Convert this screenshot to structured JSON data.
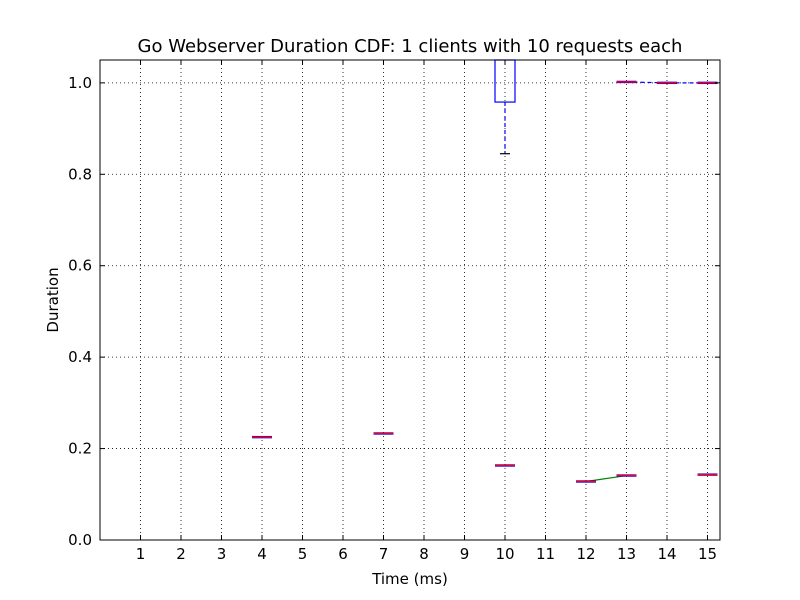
{
  "chart_data": {
    "type": "box",
    "title": "Go Webserver Duration CDF: 1 clients with 10 requests each",
    "xlabel": "Time (ms)",
    "ylabel": "Duration",
    "x_tick_labels": [
      "1",
      "2",
      "3",
      "4",
      "5",
      "6",
      "7",
      "8",
      "9",
      "10",
      "11",
      "12",
      "13",
      "14",
      "15"
    ],
    "ylim": [
      0.0,
      1.05
    ],
    "y_ticks": [
      0.0,
      0.2,
      0.4,
      0.6,
      0.8,
      1.0
    ],
    "y_tick_labels": [
      "0.0",
      "0.2",
      "0.4",
      "0.6",
      "0.8",
      "1.0"
    ],
    "grid": true,
    "colors": {
      "box": "#0000ff",
      "median": "#ff0000",
      "mean_line": "#008000",
      "flier": "#000000"
    },
    "boxes": [
      {
        "position": 4,
        "q1": 0.225,
        "median": 0.225,
        "q3": 0.225
      },
      {
        "position": 7,
        "q1": 0.233,
        "median": 0.233,
        "q3": 0.233
      },
      {
        "position": 10,
        "q1": 0.163,
        "median": 0.163,
        "q3": 0.163
      },
      {
        "position": 10,
        "q1": 0.958,
        "median": 1.05,
        "q3": 1.05,
        "whisker_low": 0.845,
        "whisker_high": 1.05
      },
      {
        "position": 12,
        "q1": 0.128,
        "median": 0.128,
        "q3": 0.128
      },
      {
        "position": 13,
        "q1": 0.141,
        "median": 0.141,
        "q3": 0.141
      },
      {
        "position": 13,
        "q1": 1.002,
        "median": 1.002,
        "q3": 1.002
      },
      {
        "position": 14,
        "q1": 1.0,
        "median": 1.0,
        "q3": 1.0
      },
      {
        "position": 15,
        "q1": 0.143,
        "median": 0.143,
        "q3": 0.143
      },
      {
        "position": 15,
        "q1": 1.0,
        "median": 1.0,
        "q3": 1.0
      }
    ],
    "lines": [
      {
        "color": "#008000",
        "points": [
          [
            12,
            0.128
          ],
          [
            13,
            0.141
          ]
        ]
      },
      {
        "color": "#0000ff",
        "style": "dashed",
        "points": [
          [
            13,
            1.002
          ],
          [
            14,
            1.0
          ],
          [
            15,
            1.0
          ]
        ]
      }
    ]
  }
}
